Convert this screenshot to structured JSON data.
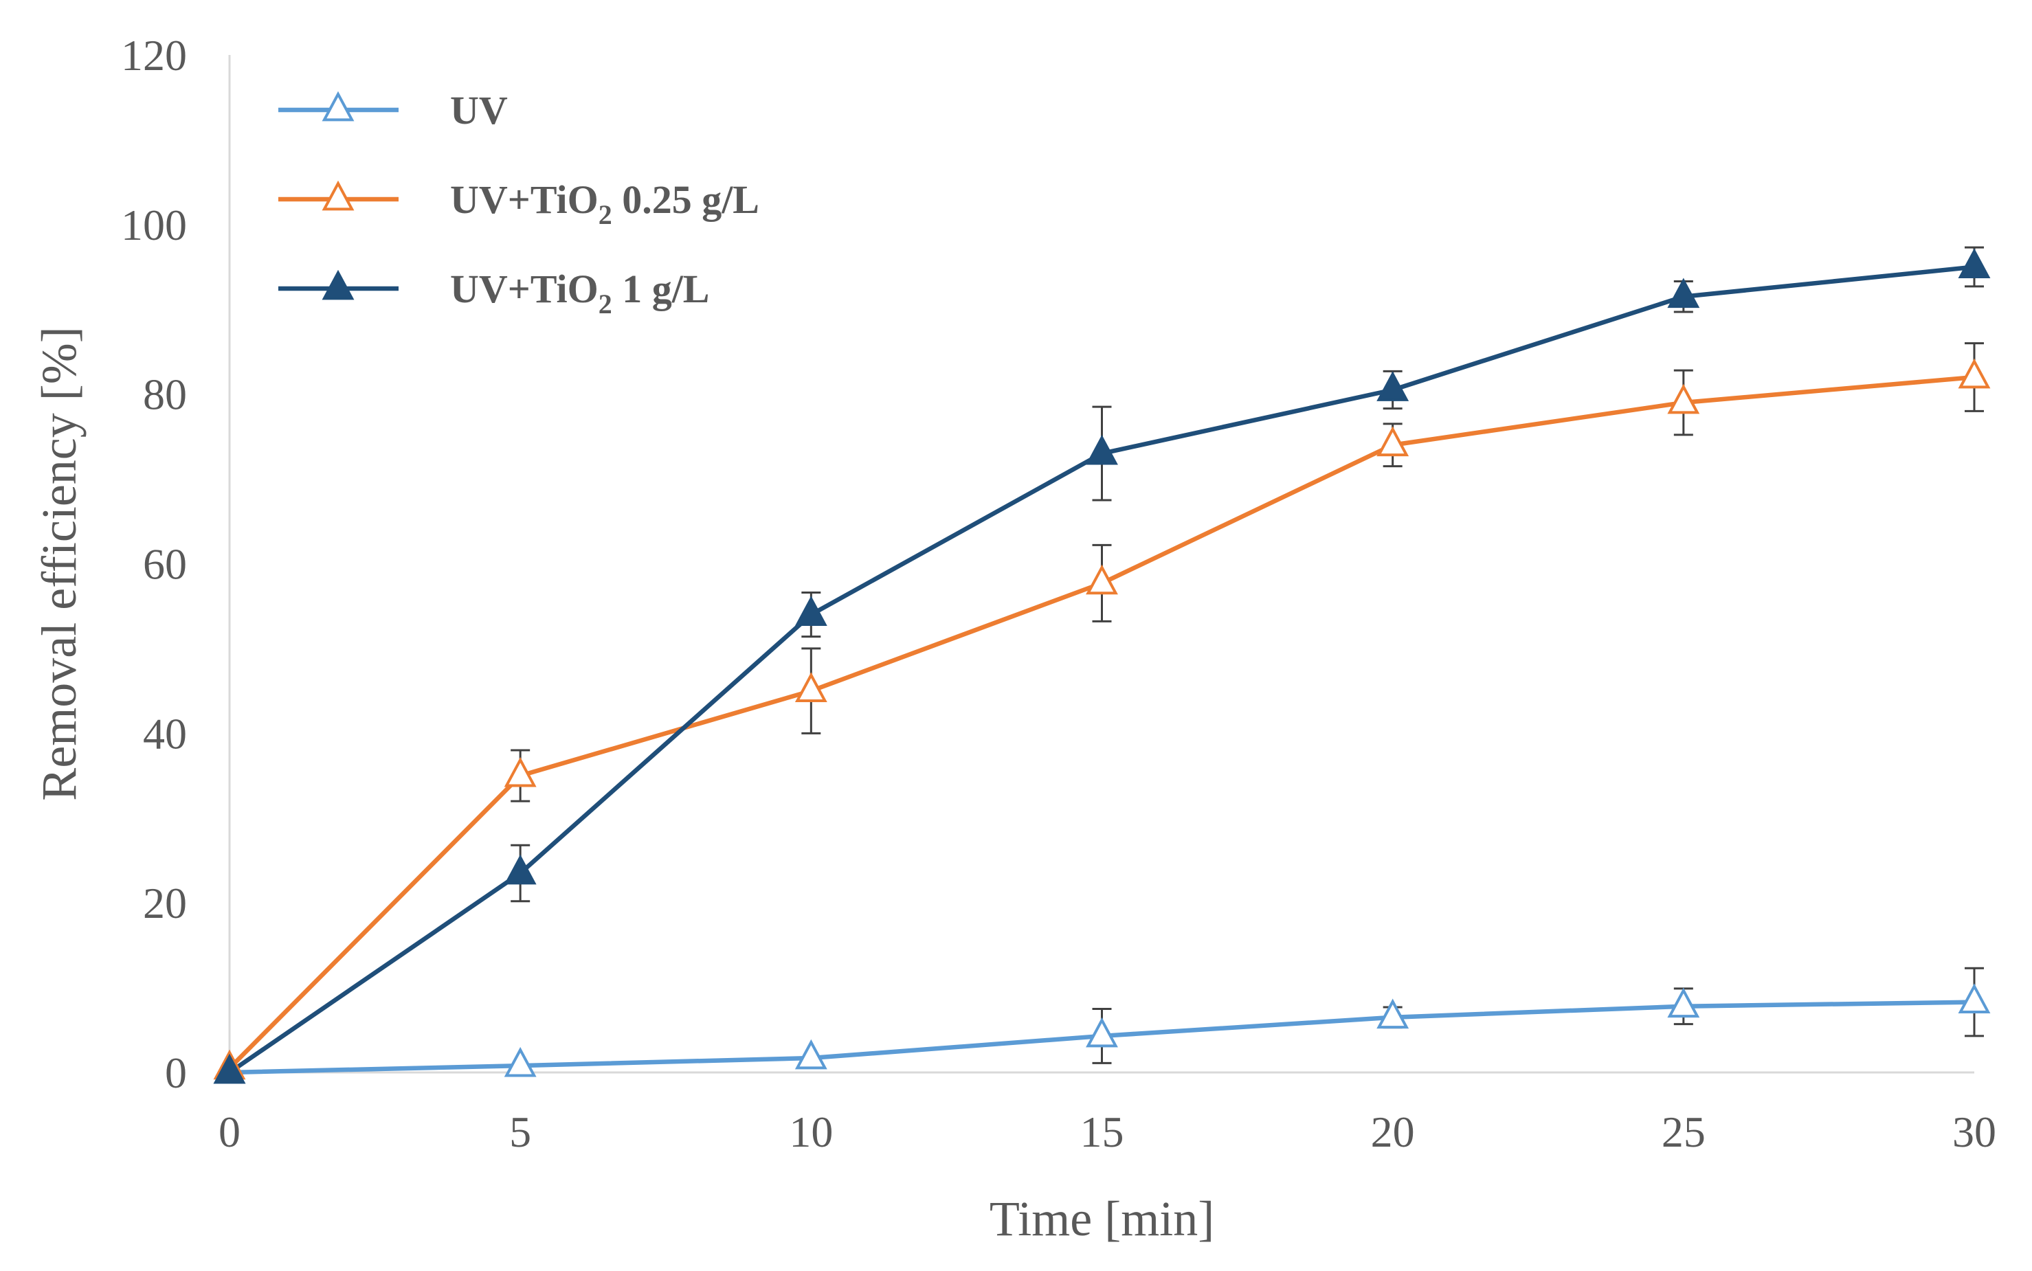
{
  "chart_data": {
    "type": "line",
    "title": "",
    "xlabel": "Time [min]",
    "ylabel": "Removal efficiency [%]",
    "x": [
      0,
      5,
      10,
      15,
      20,
      25,
      30
    ],
    "xlim": [
      0,
      30
    ],
    "ylim": [
      0,
      120
    ],
    "xticks": [
      "0",
      "5",
      "10",
      "15",
      "20",
      "25",
      "30"
    ],
    "yticks": [
      "0",
      "20",
      "40",
      "60",
      "80",
      "100",
      "120"
    ],
    "grid": false,
    "legend_position": "top-left",
    "series": [
      {
        "name": "UV",
        "legend_main": "UV",
        "legend_sub": "",
        "legend_tail": "",
        "color": "#5b9bd5",
        "marker": "triangle-open",
        "values": [
          0,
          0.8,
          1.7,
          4.3,
          6.5,
          7.8,
          8.3
        ],
        "errors": [
          0,
          0,
          0,
          3.2,
          1.2,
          2.1,
          4.0
        ]
      },
      {
        "name": "UV+TiO2 0.25 g/L",
        "legend_main": "UV+TiO",
        "legend_sub": "2",
        "legend_tail": " 0.25 g/L",
        "color": "#ed7d31",
        "marker": "triangle-open",
        "values": [
          0.5,
          35,
          45,
          57.7,
          74,
          79,
          82
        ],
        "errors": [
          0,
          3,
          5,
          4.5,
          2.5,
          3.8,
          4.0
        ]
      },
      {
        "name": "UV+TiO2 1 g/L",
        "legend_main": "UV+TiO",
        "legend_sub": "2",
        "legend_tail": " 1 g/L",
        "color": "#1f4e79",
        "marker": "triangle-filled",
        "values": [
          0,
          23.5,
          54,
          73,
          80.5,
          91.5,
          95
        ],
        "errors": [
          0,
          3.3,
          2.6,
          5.5,
          2.2,
          1.8,
          2.3
        ]
      }
    ]
  }
}
